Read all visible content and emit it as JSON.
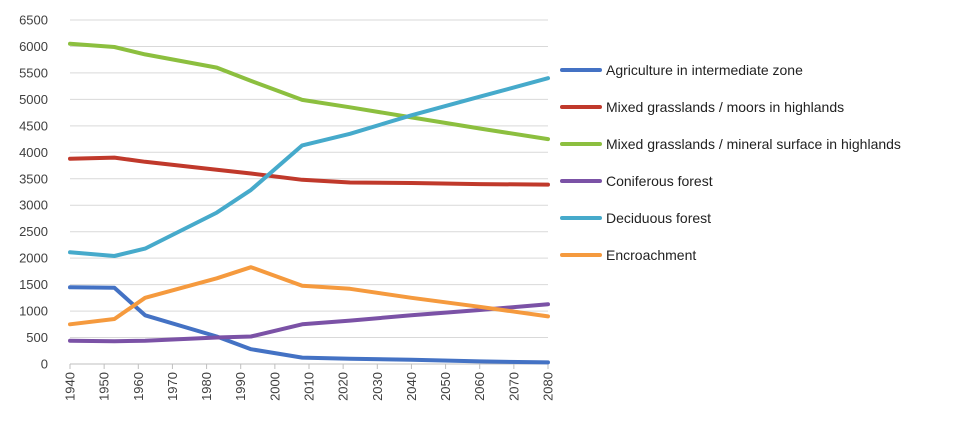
{
  "chart_data": {
    "type": "line",
    "title": "",
    "xlabel": "",
    "ylabel": "",
    "x": [
      1940,
      1953,
      1962,
      1983,
      1993,
      2008,
      2022,
      2040,
      2060,
      2080
    ],
    "xticks": [
      1940,
      1950,
      1960,
      1970,
      1980,
      1990,
      2000,
      2010,
      2020,
      2030,
      2040,
      2050,
      2060,
      2070,
      2080
    ],
    "yticks": [
      0,
      500,
      1000,
      1500,
      2000,
      2500,
      3000,
      3500,
      4000,
      4500,
      5000,
      5500,
      6000,
      6500
    ],
    "xlim": [
      1940,
      2080
    ],
    "ylim": [
      0,
      6500
    ],
    "grid": "horizontal",
    "legend_position": "right",
    "series": [
      {
        "name": "Agriculture in intermediate zone",
        "color": "#4472C4",
        "values": [
          1450,
          1440,
          920,
          520,
          280,
          120,
          100,
          80,
          50,
          30
        ]
      },
      {
        "name": "Mixed grasslands / moors in highlands",
        "color": "#C0392B",
        "values": [
          3880,
          3900,
          3820,
          3670,
          3600,
          3480,
          3430,
          3420,
          3400,
          3390
        ]
      },
      {
        "name": "Mixed grasslands / mineral surface in highlands",
        "color": "#8CBF3F",
        "values": [
          6050,
          5990,
          5850,
          5600,
          5350,
          4990,
          4850,
          4660,
          4450,
          4250
        ]
      },
      {
        "name": "Coniferous forest",
        "color": "#7B52A6",
        "values": [
          440,
          430,
          440,
          500,
          520,
          750,
          820,
          920,
          1020,
          1130
        ]
      },
      {
        "name": "Deciduous forest",
        "color": "#46AACB",
        "values": [
          2110,
          2040,
          2180,
          2860,
          3290,
          4130,
          4350,
          4700,
          5050,
          5400
        ]
      },
      {
        "name": "Encroachment",
        "color": "#F59A3E",
        "values": [
          750,
          850,
          1250,
          1620,
          1830,
          1480,
          1420,
          1250,
          1080,
          900
        ]
      }
    ]
  }
}
